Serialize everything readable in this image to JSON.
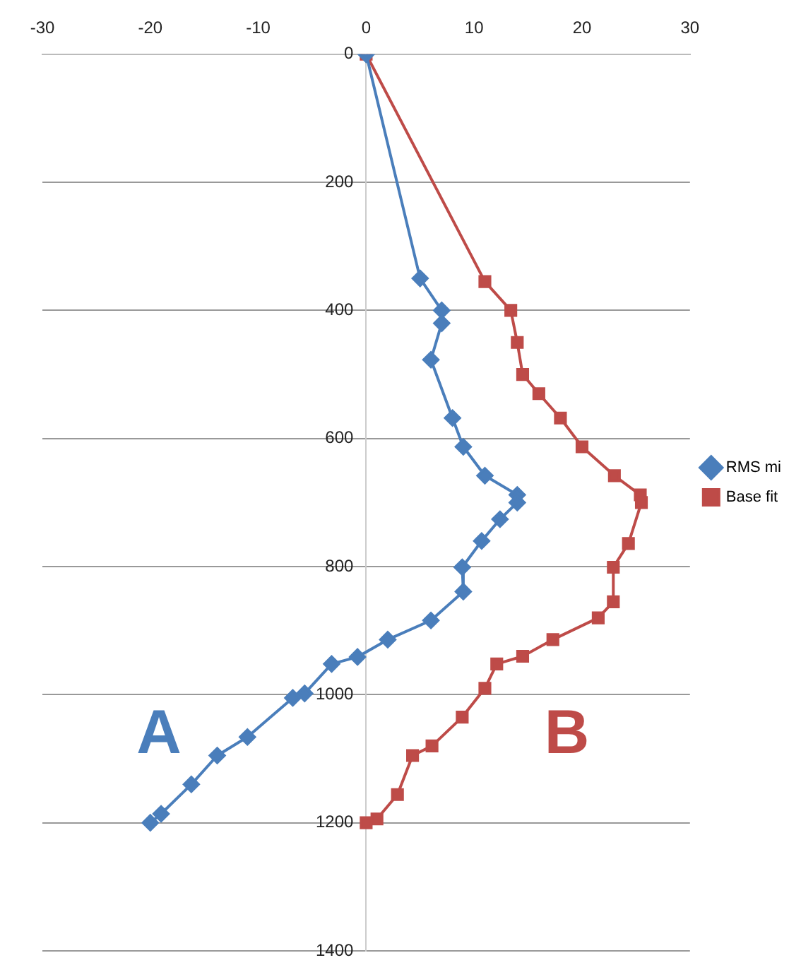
{
  "chart_data": {
    "type": "line",
    "xlim": [
      -30,
      30
    ],
    "xticks": [
      -30,
      -20,
      -10,
      0,
      10,
      20,
      30
    ],
    "ylim": [
      1400,
      0
    ],
    "yticks": [
      0,
      200,
      400,
      600,
      800,
      1000,
      1200,
      1400
    ],
    "grid": "y",
    "legend": "right",
    "series": [
      {
        "name": "RMS mi",
        "color": "#4a7ebb",
        "marker": "diamond",
        "x": [
          0,
          5,
          7,
          7,
          6,
          8,
          9,
          11,
          14,
          14,
          12.4,
          10.7,
          8.9,
          9,
          6,
          2,
          -0.8,
          -3.2,
          -5.7,
          -6.8,
          -11,
          -13.8,
          -16.2,
          -19,
          -20
        ],
        "values": [
          0,
          350,
          400,
          420,
          477,
          568,
          613,
          658,
          688,
          700,
          726,
          760,
          801,
          839,
          884,
          914,
          941,
          952,
          998,
          1005,
          1066,
          1095,
          1140,
          1186,
          1200
        ]
      },
      {
        "name": "Base fit",
        "color": "#be4b48",
        "marker": "square",
        "x": [
          0,
          11,
          13.4,
          14,
          14.5,
          16,
          18,
          20,
          23,
          25.4,
          25.5,
          24.3,
          22.9,
          22.9,
          21.5,
          17.3,
          14.5,
          12.1,
          11,
          8.9,
          6.1,
          4.3,
          2.9,
          1,
          0
        ],
        "values": [
          0,
          355,
          400,
          450,
          500,
          530,
          568,
          613,
          658,
          688,
          700,
          764,
          801,
          855,
          880,
          914,
          940,
          952,
          990,
          1035,
          1080,
          1095,
          1156,
          1194,
          1200
        ]
      }
    ],
    "annotations": [
      "A",
      "B"
    ]
  }
}
